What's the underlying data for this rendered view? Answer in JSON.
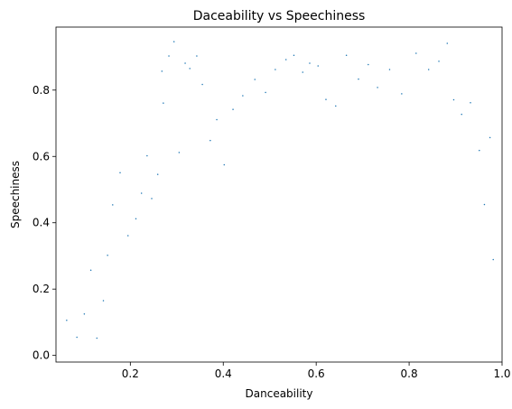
{
  "chart_data": {
    "type": "scatter",
    "title": "Daceability vs Speechiness",
    "xlabel": "Danceability",
    "ylabel": "Speechiness",
    "xlim": [
      0.04,
      1.0
    ],
    "ylim": [
      -0.02,
      0.99
    ],
    "xticks": [
      "0.2",
      "0.4",
      "0.6",
      "0.8",
      "1.0"
    ],
    "yticks": [
      "0.0",
      "0.2",
      "0.4",
      "0.6",
      "0.8"
    ],
    "grid": false,
    "color": "#1f77b4",
    "points": [
      [
        0.063,
        0.106
      ],
      [
        0.085,
        0.055
      ],
      [
        0.101,
        0.125
      ],
      [
        0.115,
        0.257
      ],
      [
        0.128,
        0.052
      ],
      [
        0.142,
        0.165
      ],
      [
        0.151,
        0.302
      ],
      [
        0.162,
        0.454
      ],
      [
        0.178,
        0.551
      ],
      [
        0.195,
        0.361
      ],
      [
        0.212,
        0.412
      ],
      [
        0.224,
        0.489
      ],
      [
        0.236,
        0.602
      ],
      [
        0.246,
        0.473
      ],
      [
        0.259,
        0.546
      ],
      [
        0.268,
        0.857
      ],
      [
        0.271,
        0.761
      ],
      [
        0.283,
        0.903
      ],
      [
        0.294,
        0.946
      ],
      [
        0.305,
        0.612
      ],
      [
        0.318,
        0.881
      ],
      [
        0.328,
        0.865
      ],
      [
        0.343,
        0.903
      ],
      [
        0.355,
        0.817
      ],
      [
        0.372,
        0.648
      ],
      [
        0.386,
        0.711
      ],
      [
        0.402,
        0.575
      ],
      [
        0.421,
        0.742
      ],
      [
        0.442,
        0.783
      ],
      [
        0.468,
        0.832
      ],
      [
        0.491,
        0.793
      ],
      [
        0.512,
        0.862
      ],
      [
        0.535,
        0.892
      ],
      [
        0.552,
        0.905
      ],
      [
        0.571,
        0.854
      ],
      [
        0.586,
        0.881
      ],
      [
        0.604,
        0.873
      ],
      [
        0.621,
        0.772
      ],
      [
        0.642,
        0.752
      ],
      [
        0.665,
        0.905
      ],
      [
        0.691,
        0.833
      ],
      [
        0.712,
        0.877
      ],
      [
        0.732,
        0.808
      ],
      [
        0.758,
        0.862
      ],
      [
        0.784,
        0.789
      ],
      [
        0.815,
        0.911
      ],
      [
        0.842,
        0.862
      ],
      [
        0.864,
        0.887
      ],
      [
        0.882,
        0.941
      ],
      [
        0.896,
        0.771
      ],
      [
        0.913,
        0.727
      ],
      [
        0.932,
        0.762
      ],
      [
        0.951,
        0.618
      ],
      [
        0.962,
        0.455
      ],
      [
        0.974,
        0.657
      ],
      [
        0.981,
        0.289
      ]
    ]
  }
}
